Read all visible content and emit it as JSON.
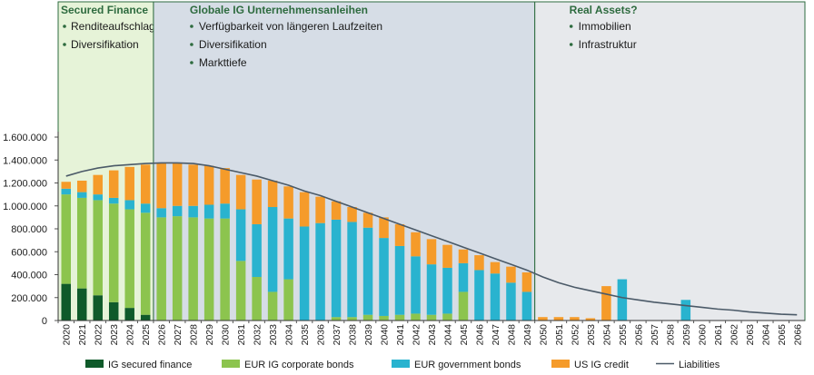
{
  "panels": [
    {
      "title": "Secured Finance",
      "bullets": [
        "Renditeaufschlag",
        "Diversifikation"
      ]
    },
    {
      "title": "Globale IG Unternehmensanleihen",
      "bullets": [
        "Verfügbarkeit von längeren Laufzeiten",
        "Diversifikation",
        "Markttiefe"
      ]
    },
    {
      "title": "Real Assets?",
      "bullets": [
        "Immobilien",
        "Infrastruktur"
      ]
    }
  ],
  "colors": {
    "secured": "#0f5a2a",
    "eur_corp": "#8cc44e",
    "eur_gov": "#29b3cf",
    "us_credit": "#f59b2a",
    "liabilities": "#4b5a68",
    "panel1_bg": "#e6f3d8",
    "panel2_bg": "#d6dde6",
    "panel3_bg": "#e7e9ec",
    "panel_border": "#2e6b3f"
  },
  "chart_data": {
    "type": "bar",
    "stacked": true,
    "categories": [
      "2020",
      "2021",
      "2022",
      "2023",
      "2024",
      "2025",
      "2026",
      "2027",
      "2028",
      "2029",
      "2030",
      "2031",
      "2032",
      "2033",
      "2034",
      "2035",
      "2036",
      "2037",
      "2038",
      "2039",
      "2040",
      "2041",
      "2042",
      "2043",
      "2044",
      "2045",
      "2046",
      "2047",
      "2048",
      "2049",
      "2050",
      "2051",
      "2052",
      "2053",
      "2054",
      "2055",
      "2056",
      "2057",
      "2058",
      "2059",
      "2060",
      "2061",
      "2062",
      "2063",
      "2064",
      "2065",
      "2066"
    ],
    "ylim": [
      0,
      1600000
    ],
    "yticks": [
      "0",
      "200.000",
      "400.000",
      "600.000",
      "800.000",
      "1.000.000",
      "1.200.000",
      "1.400.000",
      "1.600.000"
    ],
    "ytick_values": [
      0,
      200000,
      400000,
      600000,
      800000,
      1000000,
      1200000,
      1400000,
      1600000
    ],
    "series": [
      {
        "name": "IG secured finance",
        "color_key": "secured",
        "values": [
          320000,
          280000,
          220000,
          160000,
          110000,
          50000,
          0,
          0,
          0,
          0,
          0,
          0,
          0,
          0,
          0,
          0,
          0,
          0,
          0,
          0,
          0,
          0,
          0,
          0,
          0,
          0,
          0,
          0,
          0,
          0,
          0,
          0,
          0,
          0,
          0,
          0,
          0,
          0,
          0,
          0,
          0,
          0,
          0,
          0,
          0,
          0,
          0
        ]
      },
      {
        "name": "EUR IG corporate bonds",
        "color_key": "eur_corp",
        "values": [
          780000,
          790000,
          830000,
          860000,
          860000,
          890000,
          900000,
          910000,
          900000,
          890000,
          890000,
          520000,
          380000,
          250000,
          360000,
          0,
          0,
          30000,
          30000,
          50000,
          40000,
          50000,
          60000,
          50000,
          60000,
          250000,
          0,
          0,
          0,
          0,
          0,
          0,
          0,
          0,
          0,
          0,
          0,
          0,
          0,
          0,
          0,
          0,
          0,
          0,
          0,
          0,
          0
        ]
      },
      {
        "name": "EUR government bonds",
        "color_key": "eur_gov",
        "values": [
          50000,
          50000,
          50000,
          50000,
          80000,
          80000,
          80000,
          90000,
          100000,
          120000,
          130000,
          450000,
          460000,
          740000,
          530000,
          820000,
          850000,
          850000,
          830000,
          760000,
          680000,
          600000,
          500000,
          440000,
          400000,
          250000,
          440000,
          410000,
          330000,
          250000,
          0,
          0,
          0,
          0,
          0,
          360000,
          0,
          0,
          0,
          180000,
          0,
          0,
          0,
          0,
          0,
          0,
          0
        ]
      },
      {
        "name": "US IG credit",
        "color_key": "us_credit",
        "values": [
          60000,
          100000,
          170000,
          240000,
          290000,
          340000,
          390000,
          370000,
          360000,
          340000,
          310000,
          300000,
          390000,
          230000,
          280000,
          300000,
          230000,
          160000,
          130000,
          130000,
          180000,
          190000,
          210000,
          220000,
          200000,
          120000,
          130000,
          100000,
          140000,
          170000,
          30000,
          30000,
          30000,
          20000,
          300000,
          0,
          0,
          0,
          0,
          0,
          0,
          0,
          0,
          0,
          0,
          0,
          0
        ]
      },
      {
        "name": "Liabilities",
        "color_key": "liabilities",
        "kind": "line",
        "values": [
          1260000,
          1300000,
          1330000,
          1350000,
          1360000,
          1370000,
          1375000,
          1375000,
          1370000,
          1350000,
          1320000,
          1290000,
          1260000,
          1220000,
          1180000,
          1130000,
          1090000,
          1040000,
          990000,
          940000,
          890000,
          840000,
          790000,
          740000,
          690000,
          640000,
          590000,
          540000,
          490000,
          440000,
          380000,
          330000,
          290000,
          260000,
          230000,
          200000,
          180000,
          160000,
          145000,
          130000,
          115000,
          100000,
          90000,
          75000,
          65000,
          55000,
          50000
        ]
      }
    ]
  },
  "legend": [
    {
      "label": "IG secured finance",
      "color_key": "secured",
      "kind": "box"
    },
    {
      "label": "EUR IG corporate bonds",
      "color_key": "eur_corp",
      "kind": "box"
    },
    {
      "label": "EUR government bonds",
      "color_key": "eur_gov",
      "kind": "box"
    },
    {
      "label": "US IG credit",
      "color_key": "us_credit",
      "kind": "box"
    },
    {
      "label": "Liabilities",
      "color_key": "liabilities",
      "kind": "line"
    }
  ]
}
